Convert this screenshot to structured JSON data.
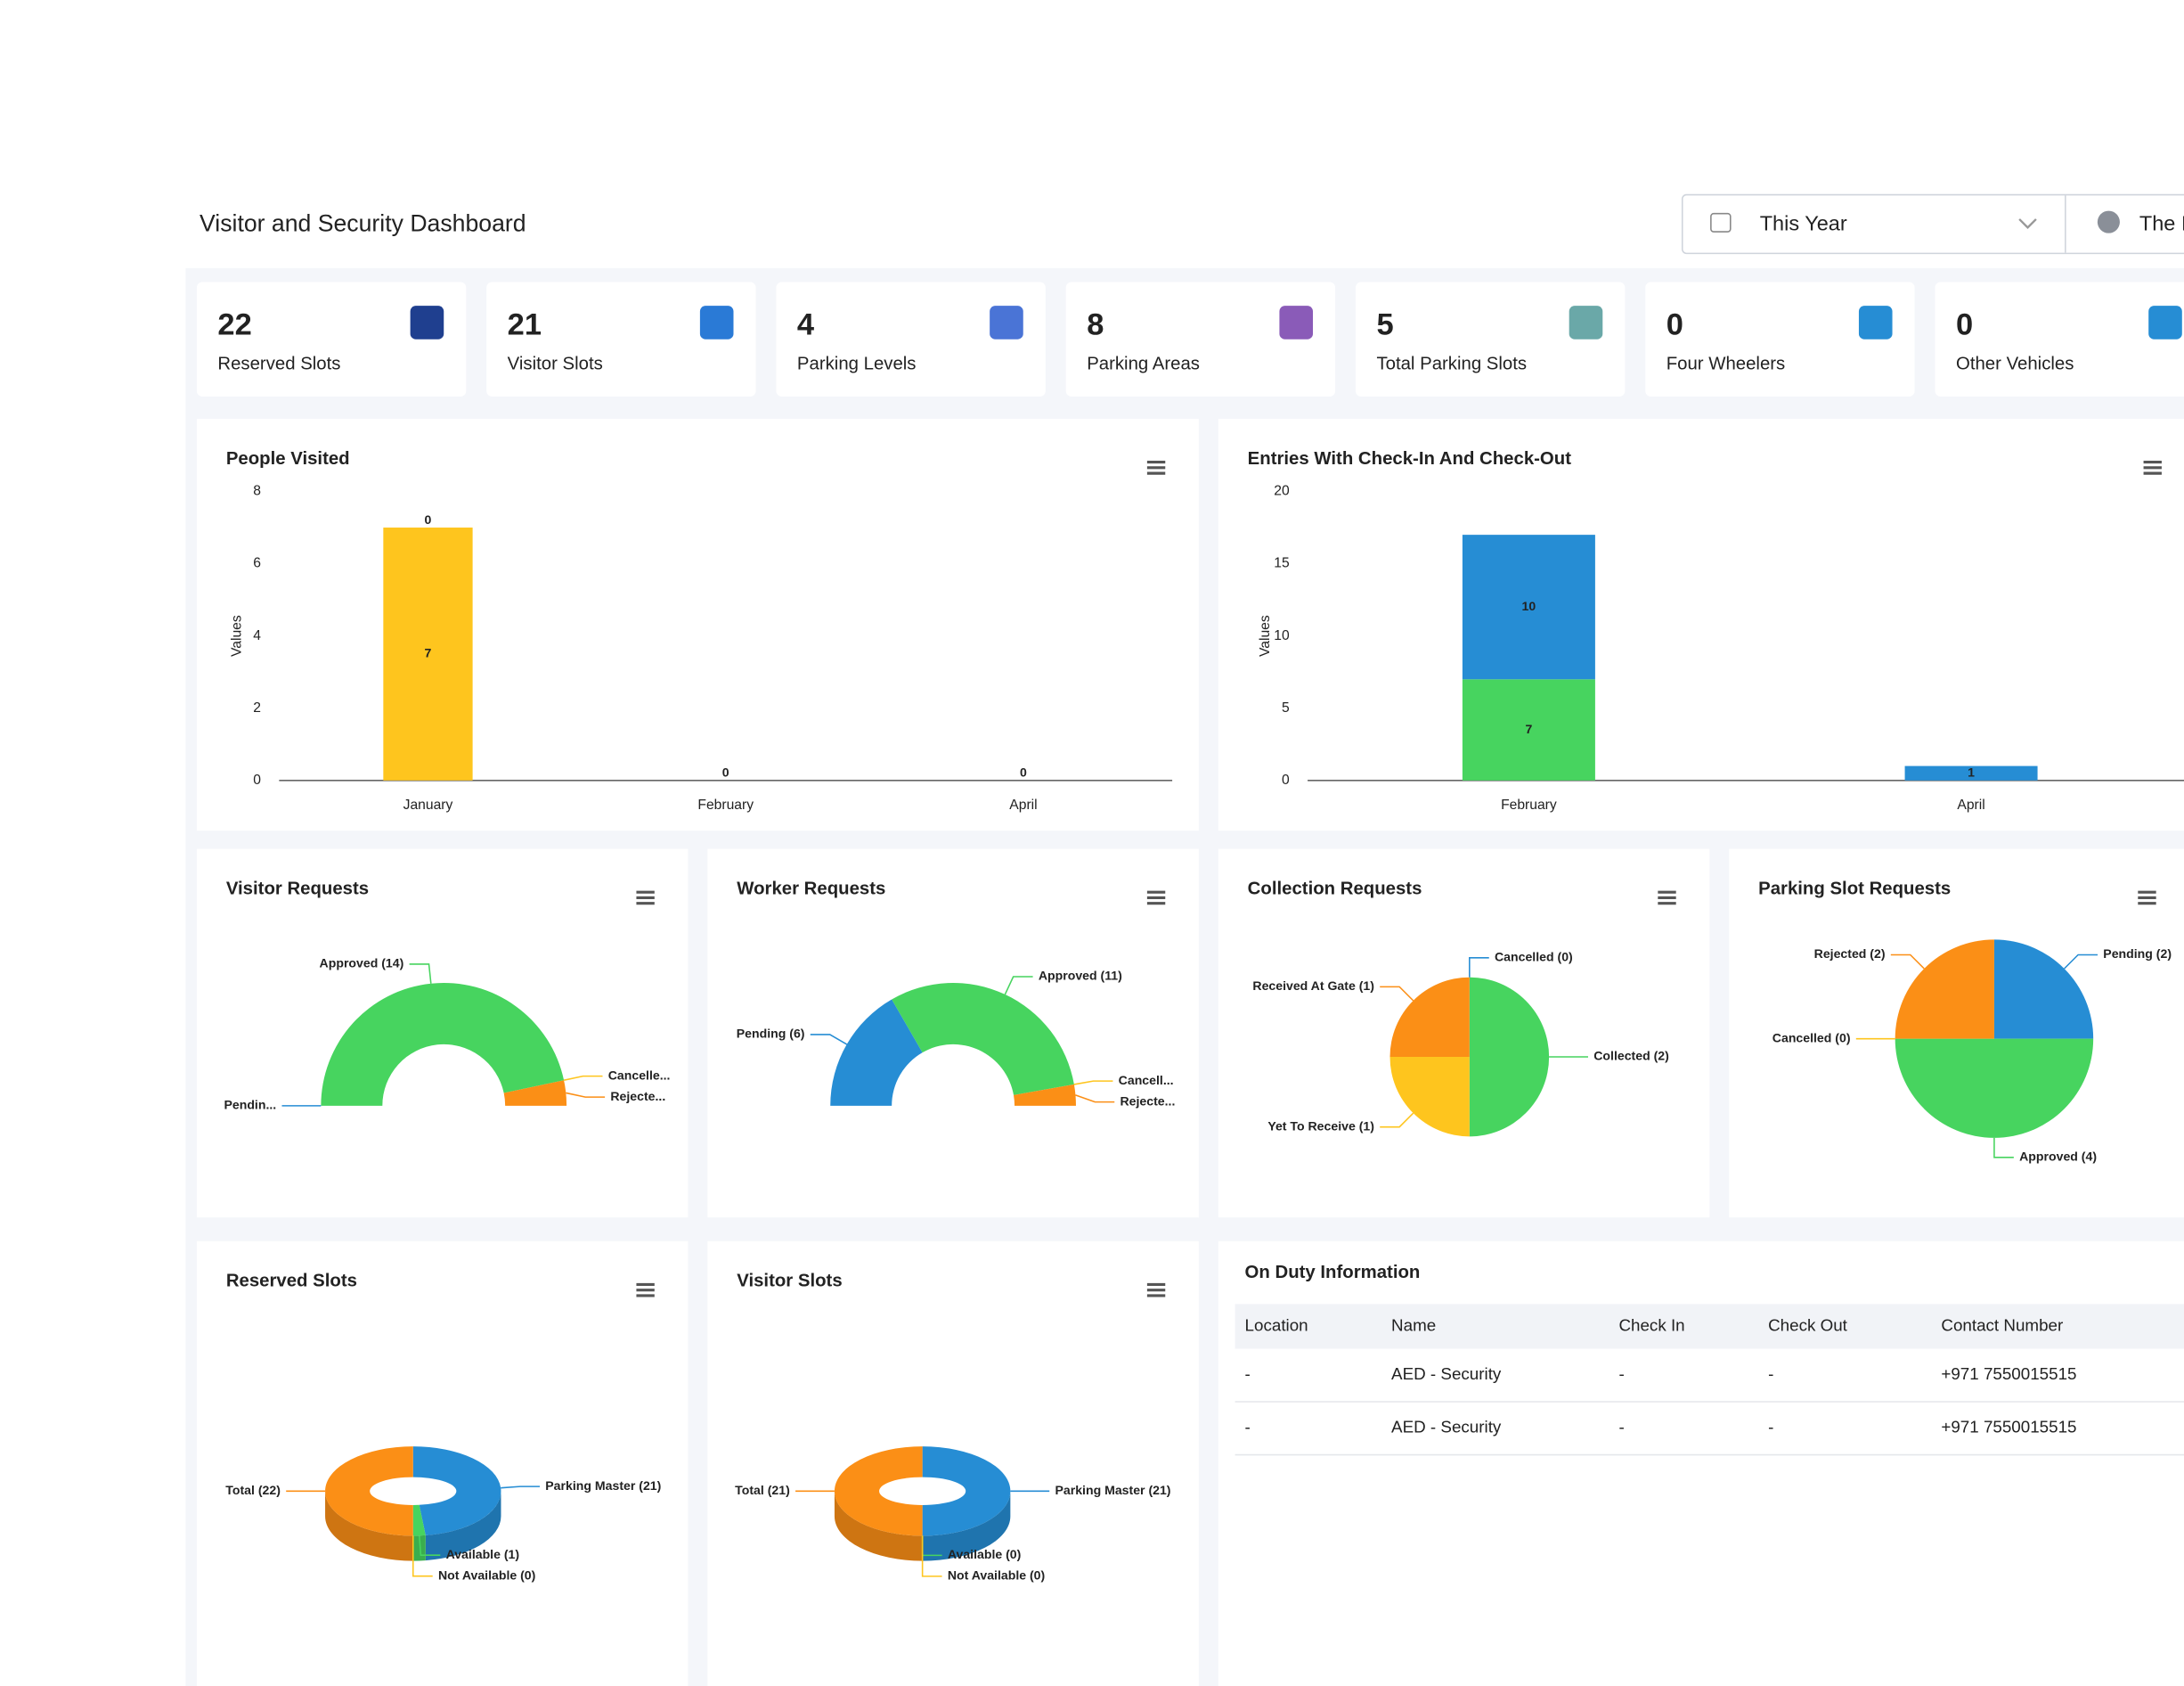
{
  "header": {
    "title": "Visitor and Security Dashboard",
    "period_filter": "This Year",
    "user_filter": "The I"
  },
  "stats": [
    {
      "value": 22,
      "label": "Reserved Slots"
    },
    {
      "value": 21,
      "label": "Visitor Slots"
    },
    {
      "value": 4,
      "label": "Parking Levels"
    },
    {
      "value": 8,
      "label": "Parking Areas"
    },
    {
      "value": 5,
      "label": "Total Parking Slots"
    },
    {
      "value": 0,
      "label": "Four Wheelers"
    },
    {
      "value": 0,
      "label": "Other Vehicles"
    }
  ],
  "chart_data": [
    {
      "type": "bar",
      "title": "People Visited",
      "y_label": "Values",
      "categories": [
        "January",
        "February",
        "April"
      ],
      "series": [
        {
          "color": "#fec51e",
          "values": [
            7,
            0,
            0
          ]
        },
        {
          "color": "#268dd4",
          "values": [
            0,
            null,
            null
          ]
        }
      ],
      "ylim": [
        0,
        8
      ],
      "yticks": [
        0,
        2,
        4,
        6,
        8
      ]
    },
    {
      "type": "bar",
      "title": "Entries With Check-In And Check-Out",
      "y_label": "Values",
      "categories": [
        "February",
        "April"
      ],
      "series": [
        {
          "color": "#47d45f",
          "values": [
            7,
            null
          ]
        },
        {
          "color": "#268dd4",
          "values": [
            10,
            1
          ]
        }
      ],
      "ylim": [
        0,
        20
      ],
      "yticks": [
        0,
        5,
        10,
        15,
        20
      ]
    },
    {
      "type": "semidonut",
      "title": "Visitor Requests",
      "categories": [
        "Pendin...",
        "Approved (14)",
        "Cancelle...",
        "Rejecte..."
      ],
      "values": [
        0,
        14,
        0,
        1
      ],
      "colors": [
        "#268dd4",
        "#47d45f",
        "#fec51e",
        "#fb8f16"
      ]
    },
    {
      "type": "semidonut",
      "title": "Worker Requests",
      "categories": [
        "Pending (6)",
        "Approved (11)",
        "Cancell...",
        "Rejecte..."
      ],
      "values": [
        6,
        11,
        0,
        1
      ],
      "colors": [
        "#268dd4",
        "#47d45f",
        "#fec51e",
        "#fb8f16"
      ]
    },
    {
      "type": "pie",
      "title": "Collection Requests",
      "categories": [
        "Cancelled (0)",
        "Collected (2)",
        "Yet To Receive (1)",
        "Received At Gate (1)"
      ],
      "values": [
        0,
        2,
        1,
        1
      ],
      "colors": [
        "#268dd4",
        "#47d45f",
        "#fec51e",
        "#fb8f16"
      ]
    },
    {
      "type": "pie",
      "title": "Parking Slot Requests",
      "categories": [
        "Pending (2)",
        "Approved (4)",
        "Cancelled (0)",
        "Rejected (2)"
      ],
      "values": [
        2,
        4,
        0,
        2
      ],
      "colors": [
        "#268dd4",
        "#47d45f",
        "#fec51e",
        "#fb8f16"
      ]
    },
    {
      "type": "donut3d",
      "title": "Reserved Slots",
      "categories": [
        "Parking Master (21)",
        "Available (1)",
        "Not Available (0)",
        "Total (22)"
      ],
      "values": [
        21,
        1,
        0,
        22
      ],
      "colors": [
        "#268dd4",
        "#47d45f",
        "#fec51e",
        "#fb8f16"
      ]
    },
    {
      "type": "donut3d",
      "title": "Visitor Slots",
      "categories": [
        "Parking Master (21)",
        "Available (0)",
        "Not Available (0)",
        "Total (21)"
      ],
      "values": [
        21,
        0,
        0,
        21
      ],
      "colors": [
        "#268dd4",
        "#47d45f",
        "#fec51e",
        "#fb8f16"
      ]
    }
  ],
  "table": {
    "title": "On Duty Information",
    "columns": [
      "Location",
      "Name",
      "Check In",
      "Check Out",
      "Contact Number"
    ],
    "rows": [
      [
        "-",
        "AED - Security",
        "-",
        "-",
        "+971 7550015515"
      ],
      [
        "-",
        "AED - Security",
        "-",
        "-",
        "+971 7550015515"
      ]
    ]
  }
}
